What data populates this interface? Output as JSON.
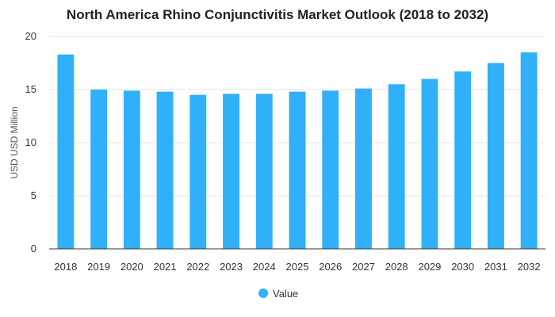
{
  "chart_data": {
    "type": "bar",
    "title": "North America Rhino Conjunctivitis Market Outlook (2018 to 2032)",
    "xlabel": "",
    "ylabel": "USD USD Million",
    "categories": [
      "2018",
      "2019",
      "2020",
      "2021",
      "2022",
      "2023",
      "2024",
      "2025",
      "2026",
      "2027",
      "2028",
      "2029",
      "2030",
      "2031",
      "2032"
    ],
    "series": [
      {
        "name": "Value",
        "values": [
          18.3,
          15.0,
          14.9,
          14.8,
          14.5,
          14.6,
          14.6,
          14.8,
          14.9,
          15.1,
          15.5,
          16.0,
          16.7,
          17.5,
          18.5
        ],
        "color": "#2fb0f8"
      }
    ],
    "ylim": [
      0,
      20
    ],
    "yticks": [
      0,
      5,
      10,
      15,
      20
    ],
    "grid": true,
    "legend": "bottom"
  }
}
